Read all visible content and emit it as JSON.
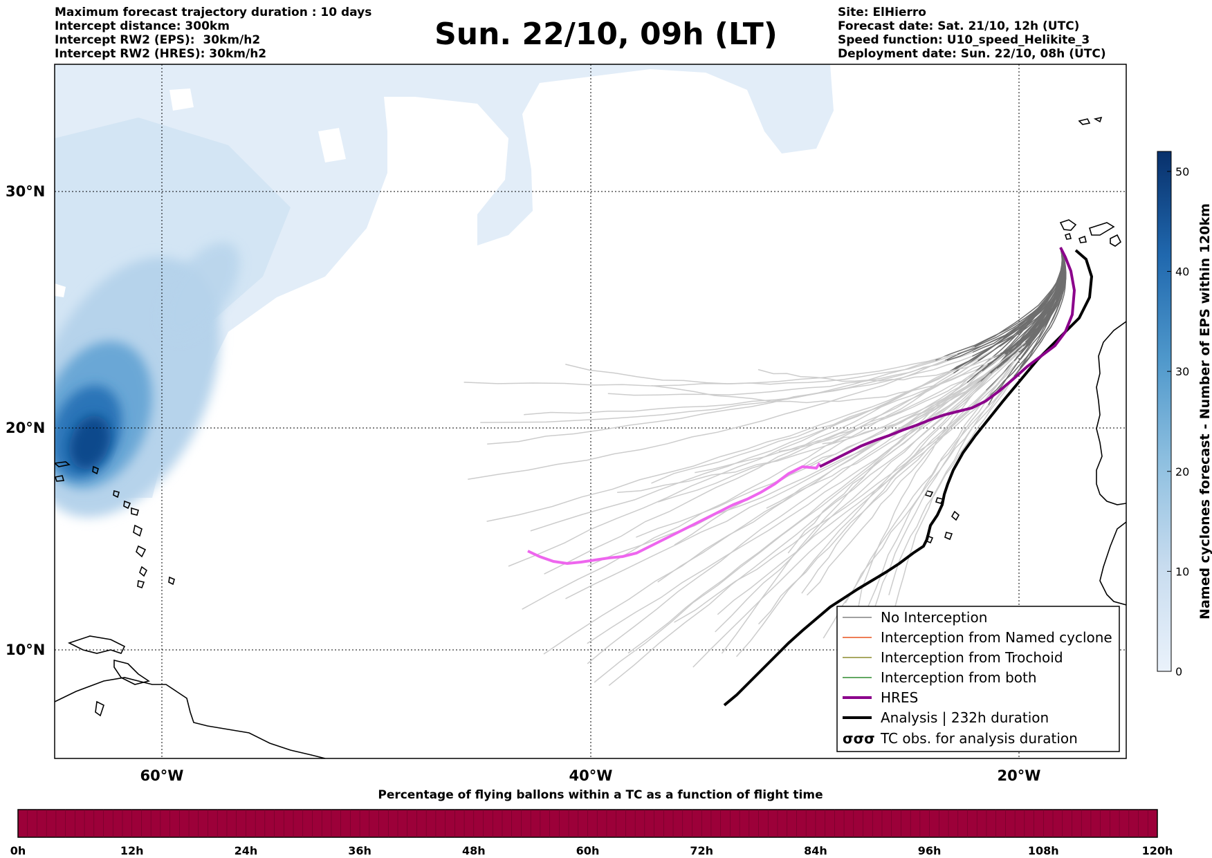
{
  "header": {
    "left_lines": [
      "Maximum forecast trajectory duration : 10 days",
      "Intercept distance: 300km",
      "Intercept RW2 (EPS):  30km/h2",
      "Intercept RW2 (HRES): 30km/h2"
    ],
    "title": "Sun. 22/10, 09h (LT)",
    "right_lines": [
      "Site: ElHierro",
      "Forecast date: Sat. 21/10, 12h (UTC)",
      "Speed function: U10_speed_Helikite_3",
      "Deployment date: Sun. 22/10, 08h (UTC)"
    ]
  },
  "map": {
    "lat_labels": [
      "30°N",
      "20°N",
      "10°N"
    ],
    "lon_labels": [
      "60°W",
      "40°W",
      "20°W"
    ],
    "colors": {
      "eps_track": "#cccccc",
      "eps_track_dark": "#6e6e6e",
      "hres": "#8b008b",
      "hres_early": "#ee66ee",
      "analysis": "#000000"
    }
  },
  "legend": {
    "items": [
      {
        "label": "No Interception",
        "color": "#808080"
      },
      {
        "label": "Interception from Named cyclone",
        "color": "#e8541e"
      },
      {
        "label": "Interception from Trochoid",
        "color": "#8b8b2e"
      },
      {
        "label": "Interception from both",
        "color": "#2e8b2e"
      },
      {
        "label": "HRES",
        "color": "#8b008b"
      },
      {
        "label": "Analysis | 232h duration",
        "color": "#000000"
      },
      {
        "label": "TC obs. for analysis duration",
        "color": "#000000"
      }
    ],
    "tc_symbol": "σσσ"
  },
  "colorbar": {
    "label": "Named cyclones forecast - Number of EPS within 120km",
    "ticks": [
      "0",
      "10",
      "20",
      "30",
      "40",
      "50"
    ],
    "range": [
      0,
      52
    ]
  },
  "bottom_bar": {
    "title": "Percentage of flying ballons within a TC as a function of flight time",
    "ticks": [
      "0h",
      "12h",
      "24h",
      "36h",
      "48h",
      "60h",
      "72h",
      "84h",
      "96h",
      "108h",
      "120h"
    ],
    "color": "#9c0039"
  }
}
